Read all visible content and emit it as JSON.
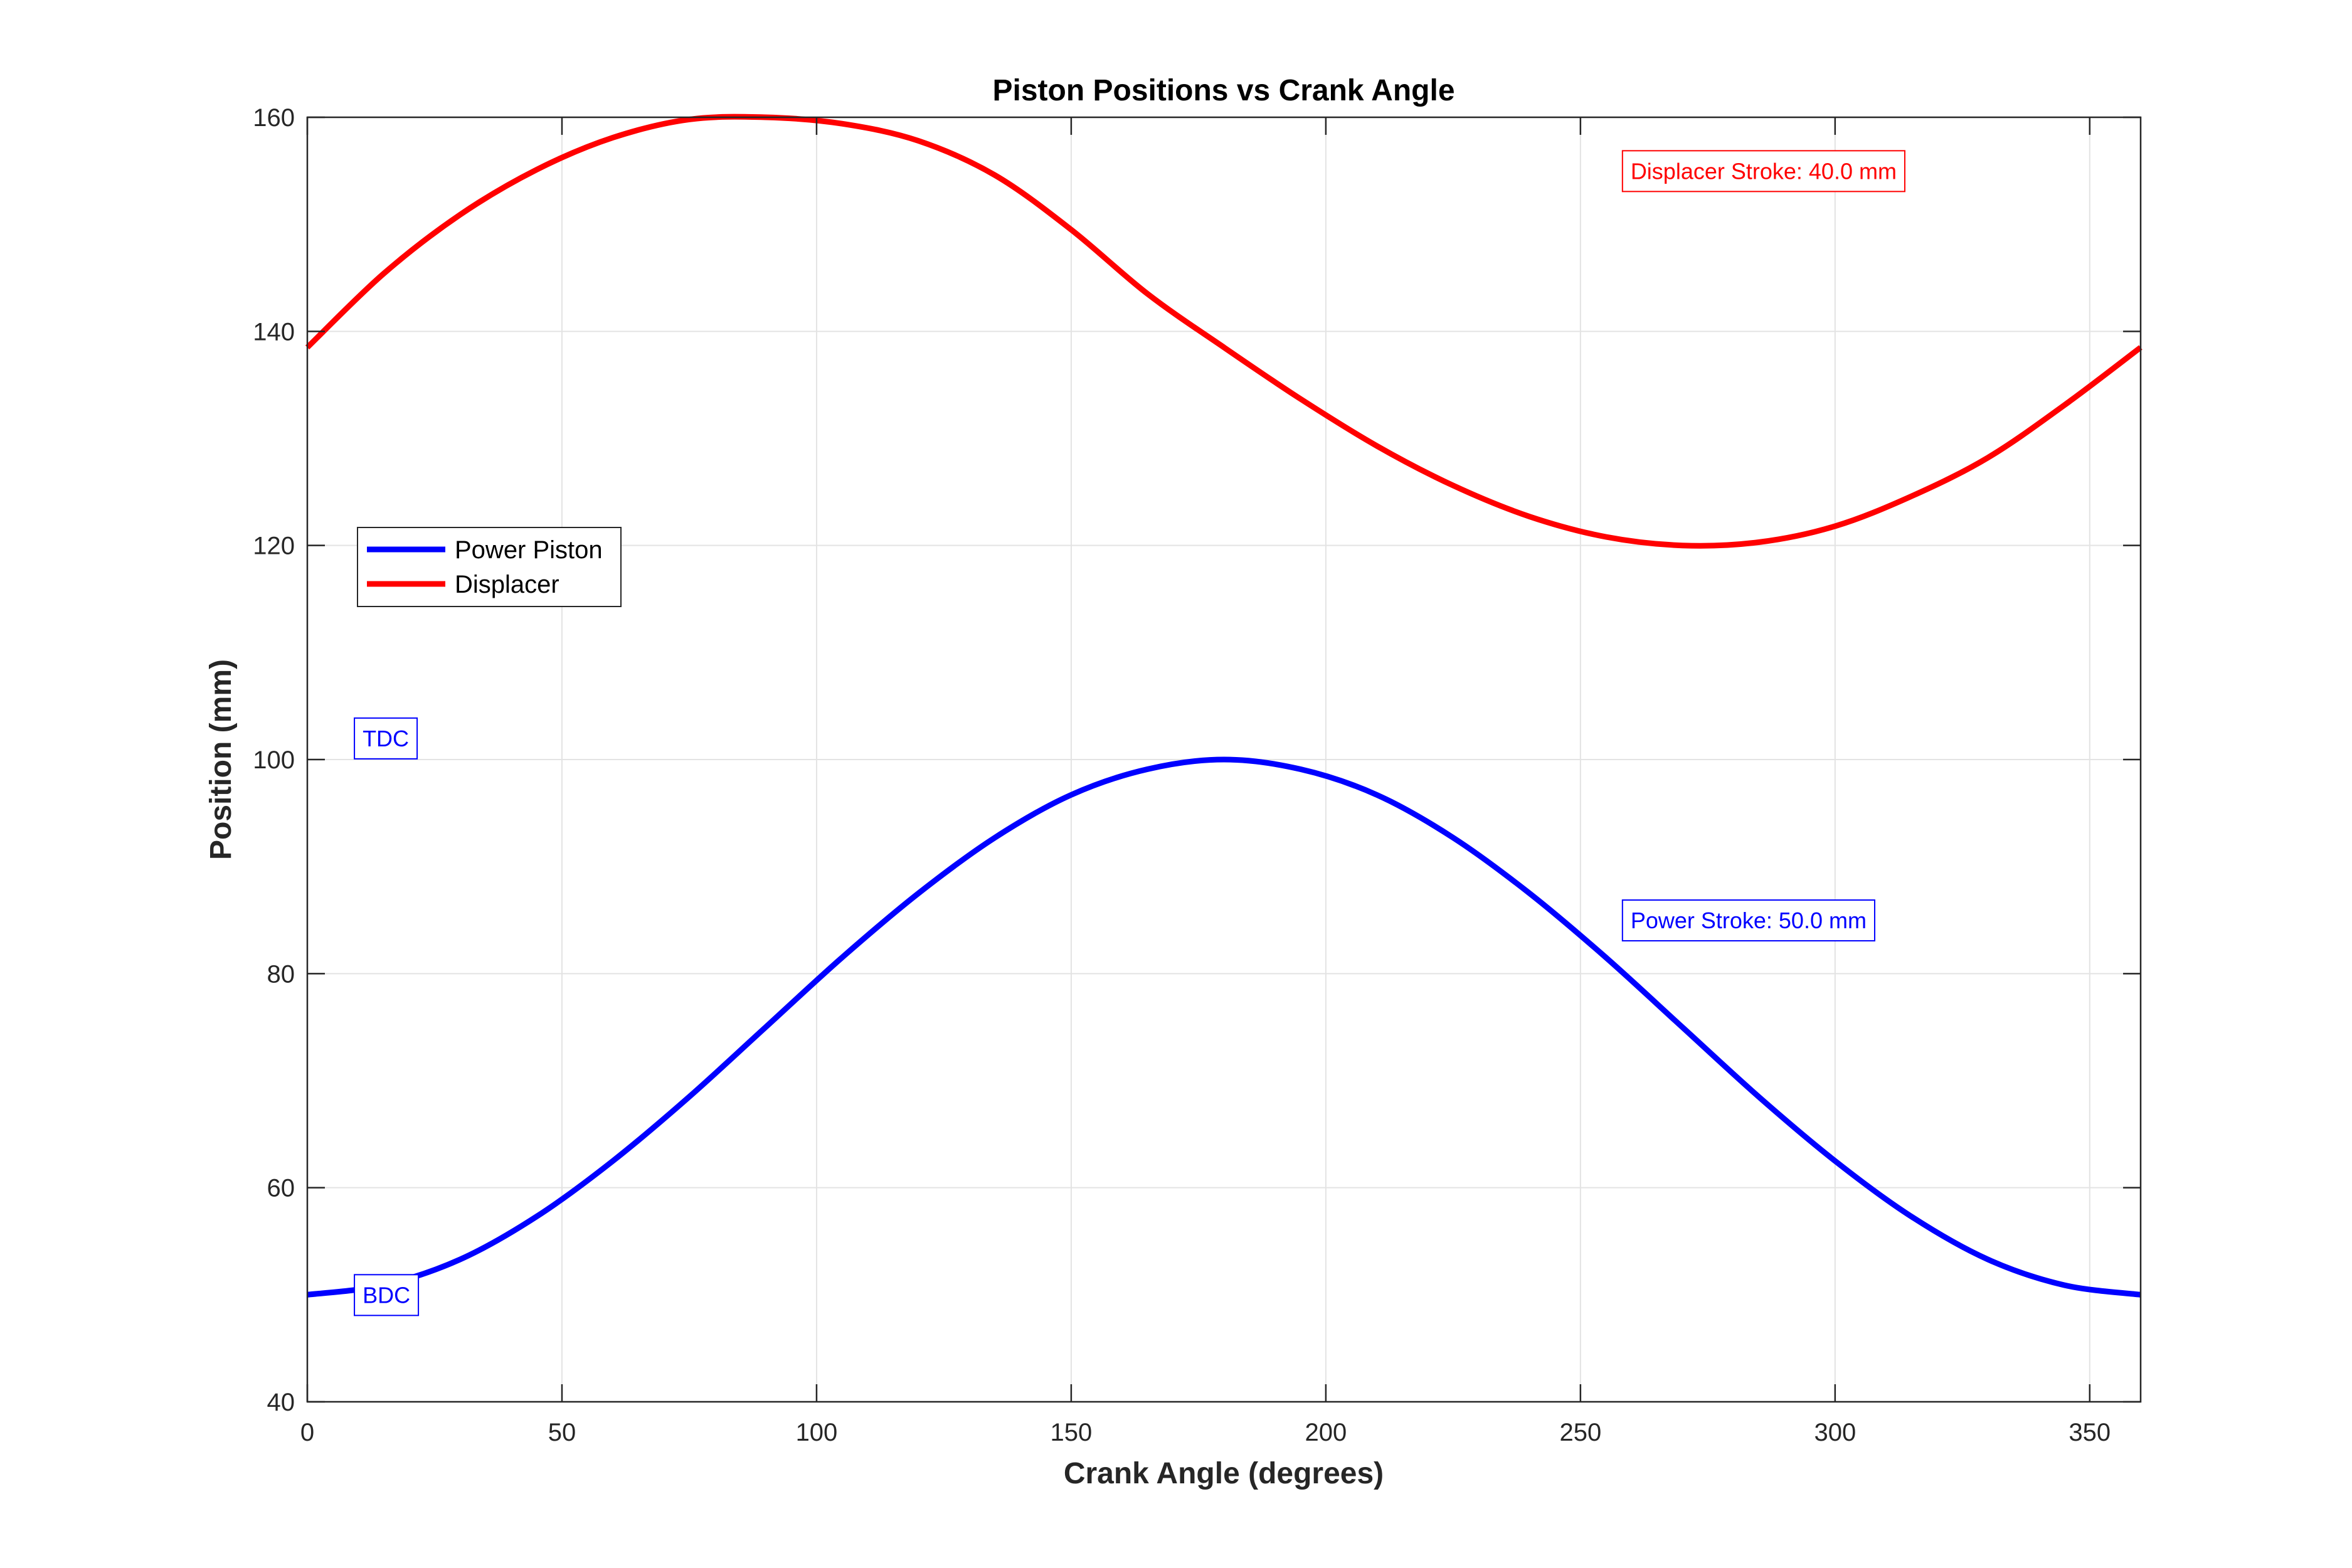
{
  "chart_data": {
    "type": "line",
    "title": "Piston Positions vs Crank Angle",
    "xlabel": "Crank Angle (degrees)",
    "ylabel": "Position (mm)",
    "xlim": [
      0,
      360
    ],
    "ylim": [
      40,
      160
    ],
    "xticks": [
      0,
      50,
      100,
      150,
      200,
      250,
      300,
      350
    ],
    "yticks": [
      40,
      60,
      80,
      100,
      120,
      140,
      160
    ],
    "grid": true,
    "legend": {
      "placement": "left",
      "entries": [
        "Power Piston",
        "Displacer"
      ]
    },
    "series": [
      {
        "name": "Power Piston",
        "color": "#0000ff",
        "x": [
          0,
          15,
          30,
          45,
          60,
          75,
          90,
          105,
          120,
          135,
          150,
          165,
          180,
          195,
          210,
          225,
          240,
          255,
          270,
          285,
          300,
          315,
          330,
          345,
          360
        ],
        "y": [
          50.0,
          50.9,
          53.3,
          57.3,
          62.5,
          68.5,
          75.0,
          81.5,
          87.5,
          92.7,
          96.7,
          99.1,
          100.0,
          99.1,
          96.7,
          92.7,
          87.5,
          81.5,
          75.0,
          68.5,
          62.5,
          57.3,
          53.3,
          50.9,
          50.0
        ]
      },
      {
        "name": "Displacer",
        "color": "#ff0000",
        "x": [
          0,
          15,
          30,
          45,
          60,
          75,
          90,
          105,
          120,
          135,
          150,
          165,
          180,
          195,
          210,
          225,
          240,
          255,
          270,
          285,
          300,
          315,
          330,
          345,
          360
        ],
        "y": [
          138.5,
          145.4,
          150.9,
          155.1,
          158.1,
          159.8,
          160.0,
          159.4,
          157.8,
          154.6,
          149.5,
          143.5,
          138.5,
          133.7,
          129.3,
          125.6,
          122.7,
          120.8,
          120.0,
          120.3,
          121.8,
          124.6,
          128.2,
          133.1,
          138.5
        ]
      }
    ],
    "annotations": [
      {
        "text": "Displacer Stroke: 40.0 mm",
        "color": "#ff0000",
        "x": 258,
        "y": 155
      },
      {
        "text": "Power Stroke: 50.0 mm",
        "color": "#0000ff",
        "x": 258,
        "y": 85
      },
      {
        "text": "TDC",
        "color": "#0000ff",
        "x": 9,
        "y": 102
      },
      {
        "text": "BDC",
        "color": "#0000ff",
        "x": 9,
        "y": 50
      }
    ]
  }
}
